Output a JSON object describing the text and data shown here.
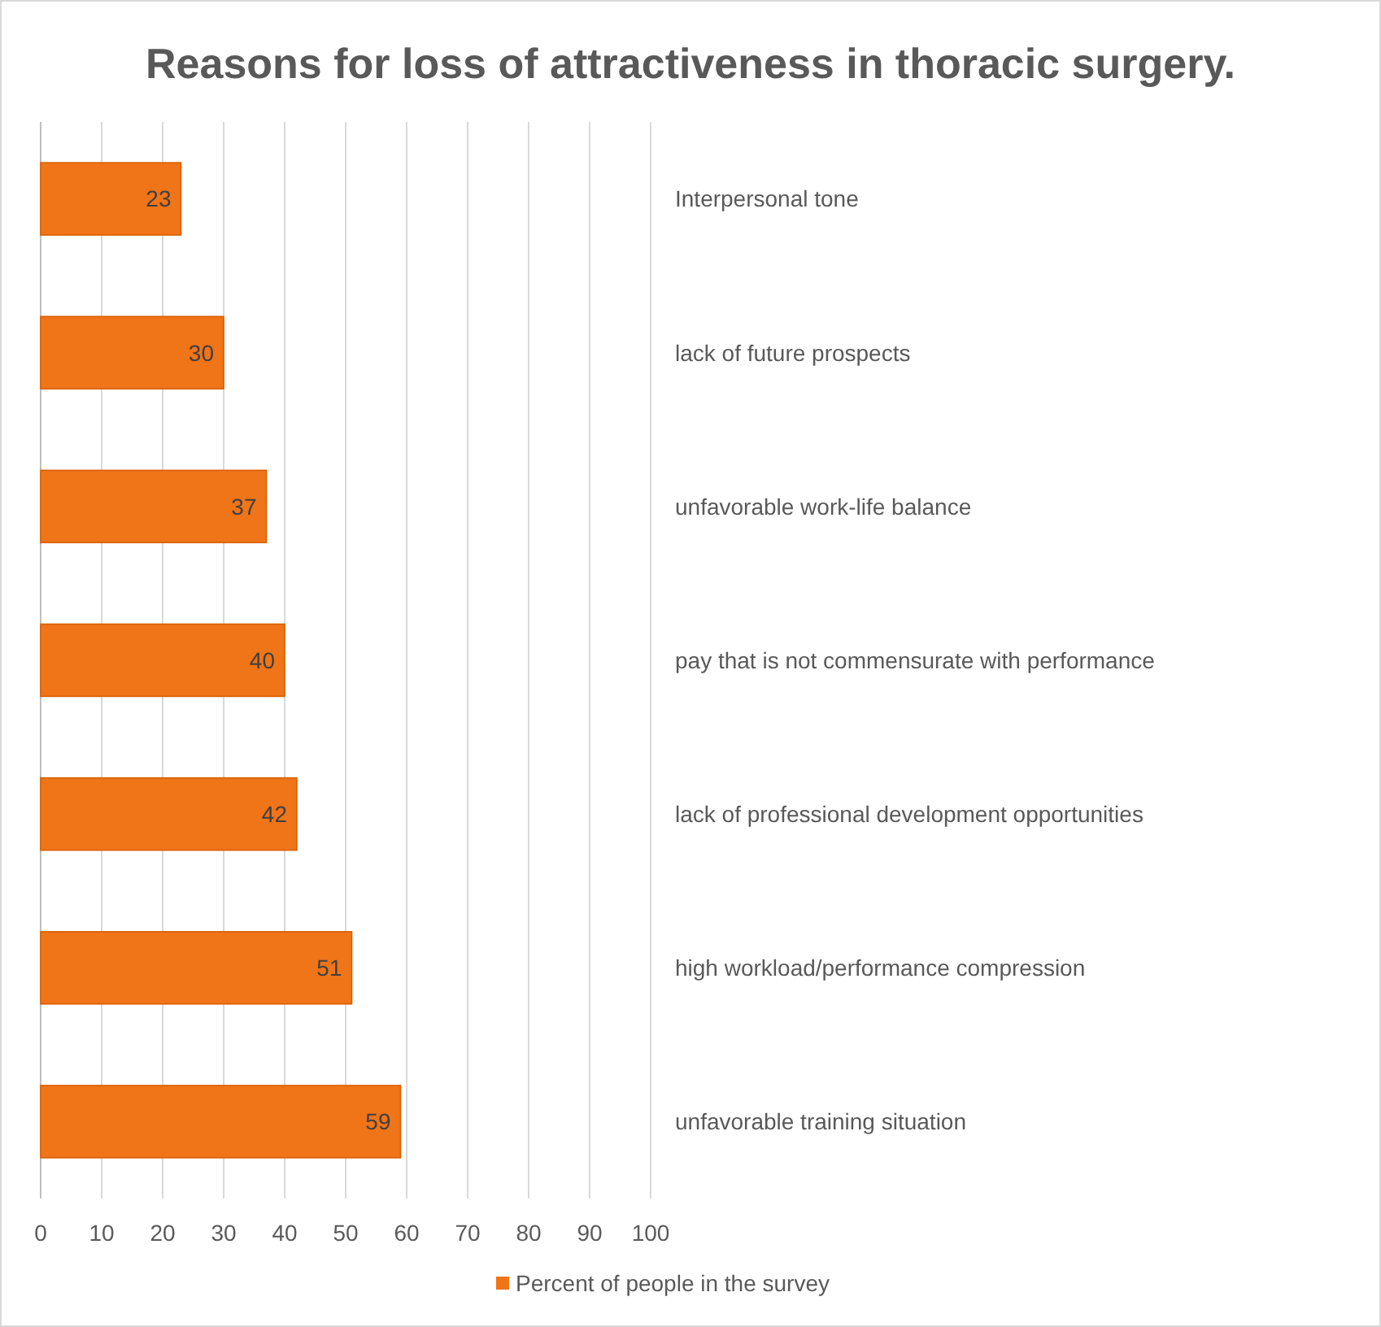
{
  "chart_data": {
    "type": "bar",
    "orientation": "horizontal",
    "title": "Reasons for loss of attractiveness in thoracic surgery.",
    "categories": [
      "Interpersonal tone",
      "lack of future prospects",
      "unfavorable work-life balance",
      "pay that is not commensurate with performance",
      "lack of professional development opportunities",
      "high workload/performance compression",
      "unfavorable training situation"
    ],
    "series": [
      {
        "name": "Percent of people in the survey",
        "color": "#f07418",
        "values": [
          23,
          30,
          37,
          40,
          42,
          51,
          59
        ]
      }
    ],
    "xlim": [
      0,
      100
    ],
    "xticks": [
      0,
      10,
      20,
      30,
      40,
      50,
      60,
      70,
      80,
      90,
      100
    ],
    "grid": "x",
    "legend": "bottom",
    "data_labels": true
  }
}
